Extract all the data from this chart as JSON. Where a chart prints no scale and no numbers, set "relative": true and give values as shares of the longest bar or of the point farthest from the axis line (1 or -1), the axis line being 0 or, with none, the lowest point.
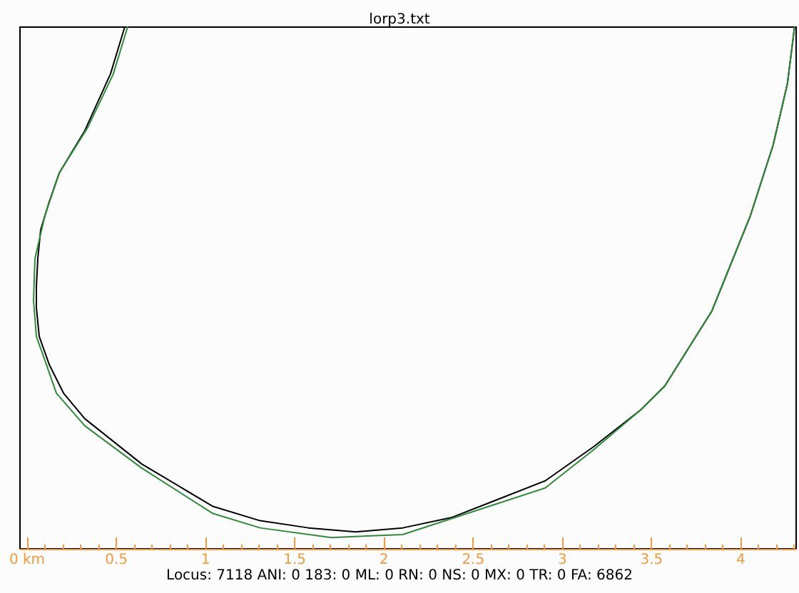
{
  "chart_data": {
    "type": "line",
    "title": "lorp3.txt",
    "relative": true,
    "annotations": [
      "Locus: 7118 ANI: 0 183: 0 ML: 0 RN: 0 NS: 0 MX: 0 TR: 0 FA: 6862"
    ],
    "xlim": [
      -0.04,
      4.31
    ],
    "xticks": [
      {
        "value": 0,
        "label": "0 km"
      },
      0.5,
      1.0,
      1.5,
      2.0,
      2.5,
      3.0,
      3.5,
      4.0
    ],
    "grid": false,
    "marker": "none",
    "line_style": "solid",
    "series": [
      {
        "color": "#000000",
        "x": [
          0.547,
          0.467,
          0.323,
          0.18,
          0.124,
          0.076,
          0.06,
          0.052,
          0.052,
          0.068,
          0.124,
          0.204,
          0.323,
          0.643,
          1.042,
          1.306,
          1.577,
          1.841,
          2.105,
          2.376,
          2.64,
          2.903,
          3.175,
          3.438,
          3.574,
          3.838,
          4.054,
          4.181,
          4.261,
          4.301
        ],
        "values": [
          1.0,
          0.908,
          0.797,
          0.714,
          0.658,
          0.603,
          0.547,
          0.492,
          0.45,
          0.394,
          0.339,
          0.283,
          0.233,
          0.144,
          0.061,
          0.033,
          0.019,
          0.011,
          0.019,
          0.039,
          0.075,
          0.111,
          0.178,
          0.25,
          0.297,
          0.444,
          0.631,
          0.769,
          0.889,
          1.0
        ]
      },
      {
        "color": "#2e8b3a",
        "x": [
          0.563,
          0.483,
          0.339,
          0.18,
          0.1,
          0.044,
          0.036,
          0.052,
          0.108,
          0.164,
          0.323,
          0.643,
          1.042,
          1.306,
          1.705,
          2.105,
          2.64,
          2.903,
          3.175,
          3.438,
          3.574,
          3.838,
          4.054,
          4.181,
          4.261,
          4.301
        ],
        "values": [
          1.0,
          0.908,
          0.803,
          0.714,
          0.631,
          0.547,
          0.464,
          0.394,
          0.339,
          0.283,
          0.219,
          0.136,
          0.047,
          0.019,
          0.0,
          0.006,
          0.067,
          0.097,
          0.172,
          0.25,
          0.297,
          0.444,
          0.631,
          0.769,
          0.889,
          1.0
        ]
      }
    ]
  }
}
